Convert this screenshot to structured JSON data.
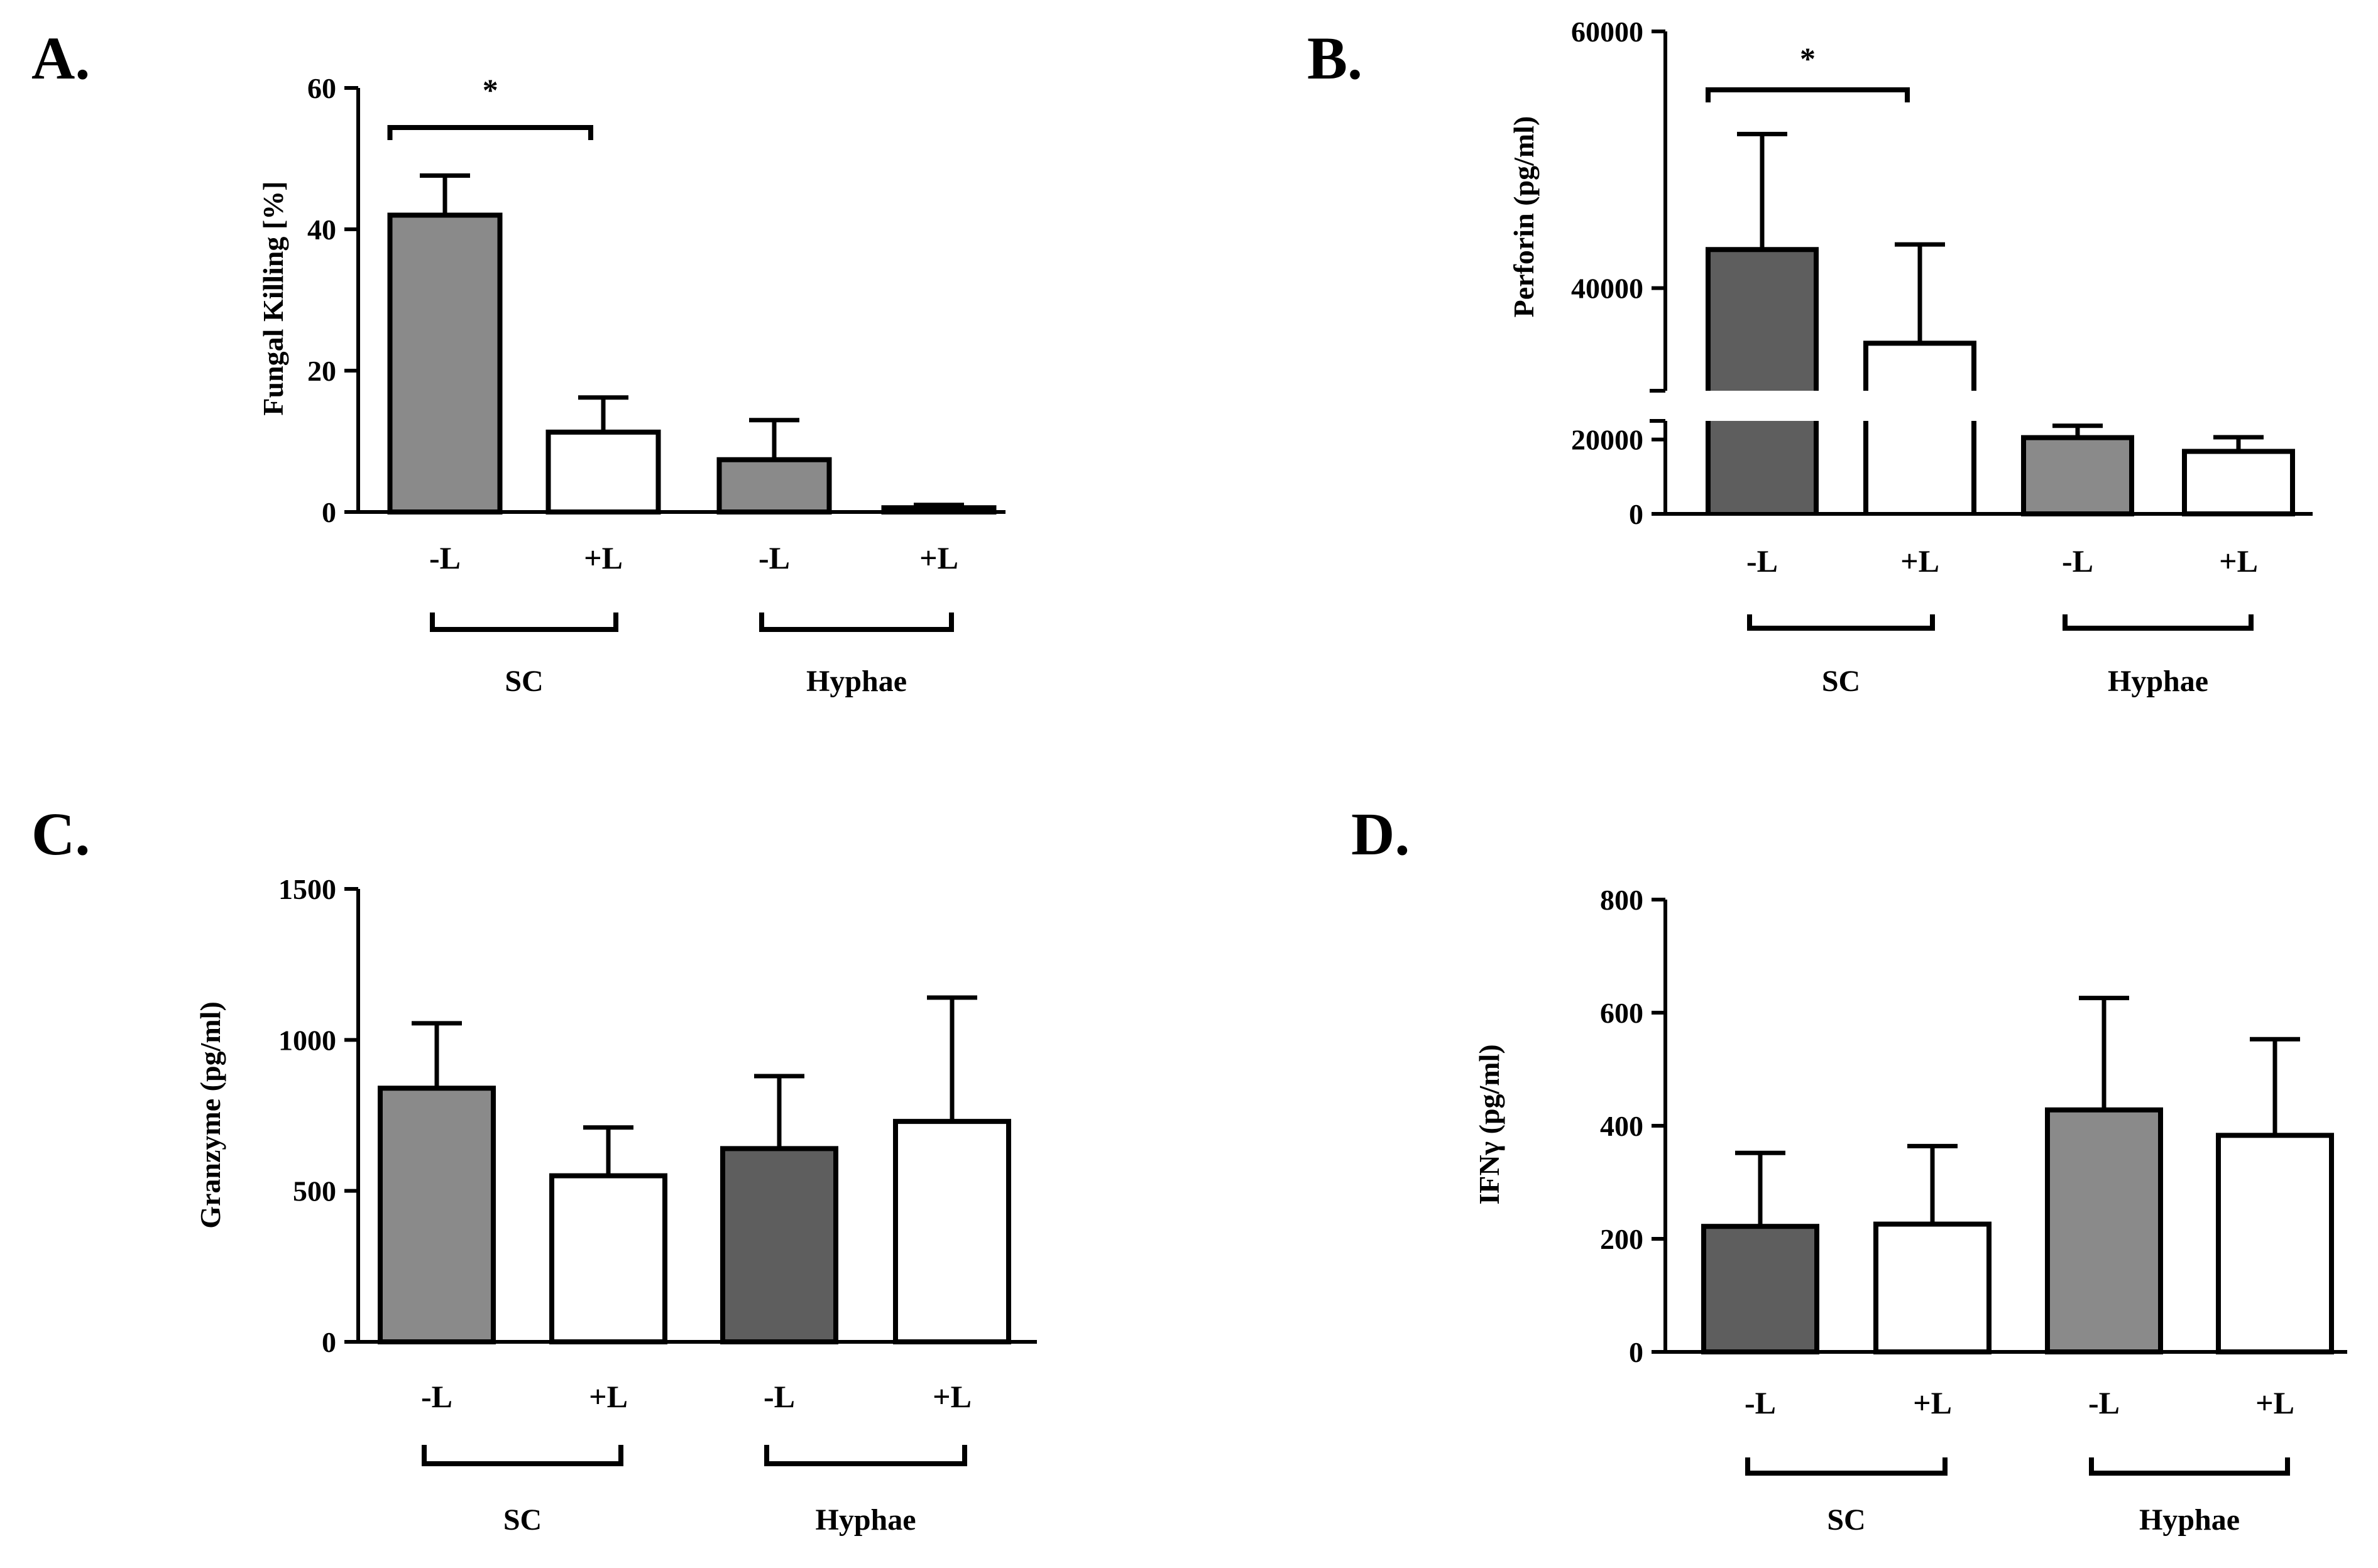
{
  "colors": {
    "dark_gray": "#5e5e5e",
    "mid_gray": "#8a8a8a",
    "white": "#ffffff",
    "black": "#000000"
  },
  "chart_data": [
    {
      "panel": "A.",
      "type": "bar",
      "ylabel": "Fungal Killing [%]",
      "ylim": [
        0,
        60
      ],
      "yticks": [
        "0",
        "20",
        "40",
        "60"
      ],
      "categories": [
        "-L",
        "+L",
        "-L",
        "+L"
      ],
      "values": [
        42,
        11.3,
        7.4,
        0.6
      ],
      "errors": [
        5.6,
        4.9,
        5.6,
        0.4
      ],
      "fills": [
        "mid_gray",
        "white",
        "mid_gray",
        "white"
      ],
      "groups": [
        {
          "label": "SC",
          "span": [
            0,
            1
          ]
        },
        {
          "label": "Hyphae",
          "span": [
            2,
            3
          ]
        }
      ],
      "significance": [
        {
          "label": "*",
          "span": [
            0,
            1
          ]
        }
      ]
    },
    {
      "panel": "B.",
      "type": "bar",
      "ylabel": "Perforin (pg/ml)",
      "ylim": [
        0,
        60000
      ],
      "axis_break": [
        25000,
        32000
      ],
      "yticks": [
        "0",
        "20000",
        "40000",
        "60000"
      ],
      "categories": [
        "-L",
        "+L",
        "-L",
        "+L"
      ],
      "values": [
        43000,
        35700,
        20500,
        16800
      ],
      "errors": [
        9000,
        7700,
        3200,
        3800
      ],
      "fills": [
        "dark_gray",
        "white",
        "mid_gray",
        "white"
      ],
      "groups": [
        {
          "label": "SC",
          "span": [
            0,
            1
          ]
        },
        {
          "label": "Hyphae",
          "span": [
            2,
            3
          ]
        }
      ],
      "significance": [
        {
          "label": "*",
          "span": [
            0,
            1
          ]
        }
      ]
    },
    {
      "panel": "C.",
      "type": "bar",
      "ylabel": "Granzyme (pg/ml)",
      "ylim": [
        0,
        1500
      ],
      "yticks": [
        "0",
        "500",
        "1000",
        "1500"
      ],
      "categories": [
        "-L",
        "+L",
        "-L",
        "+L"
      ],
      "values": [
        840,
        550,
        640,
        730
      ],
      "errors": [
        215,
        160,
        240,
        410
      ],
      "fills": [
        "mid_gray",
        "white",
        "dark_gray",
        "white"
      ],
      "groups": [
        {
          "label": "SC",
          "span": [
            0,
            1
          ]
        },
        {
          "label": "Hyphae",
          "span": [
            2,
            3
          ]
        }
      ],
      "significance": []
    },
    {
      "panel": "D.",
      "type": "bar",
      "ylabel": "IFNγ (pg/ml)",
      "ylim": [
        0,
        800
      ],
      "yticks": [
        "0",
        "200",
        "400",
        "600",
        "800"
      ],
      "categories": [
        "-L",
        "+L",
        "-L",
        "+L"
      ],
      "values": [
        222,
        226,
        428,
        383
      ],
      "errors": [
        130,
        138,
        198,
        170
      ],
      "fills": [
        "dark_gray",
        "white",
        "mid_gray",
        "white"
      ],
      "groups": [
        {
          "label": "SC",
          "span": [
            0,
            1
          ]
        },
        {
          "label": "Hyphae",
          "span": [
            2,
            3
          ]
        }
      ],
      "significance": []
    }
  ]
}
